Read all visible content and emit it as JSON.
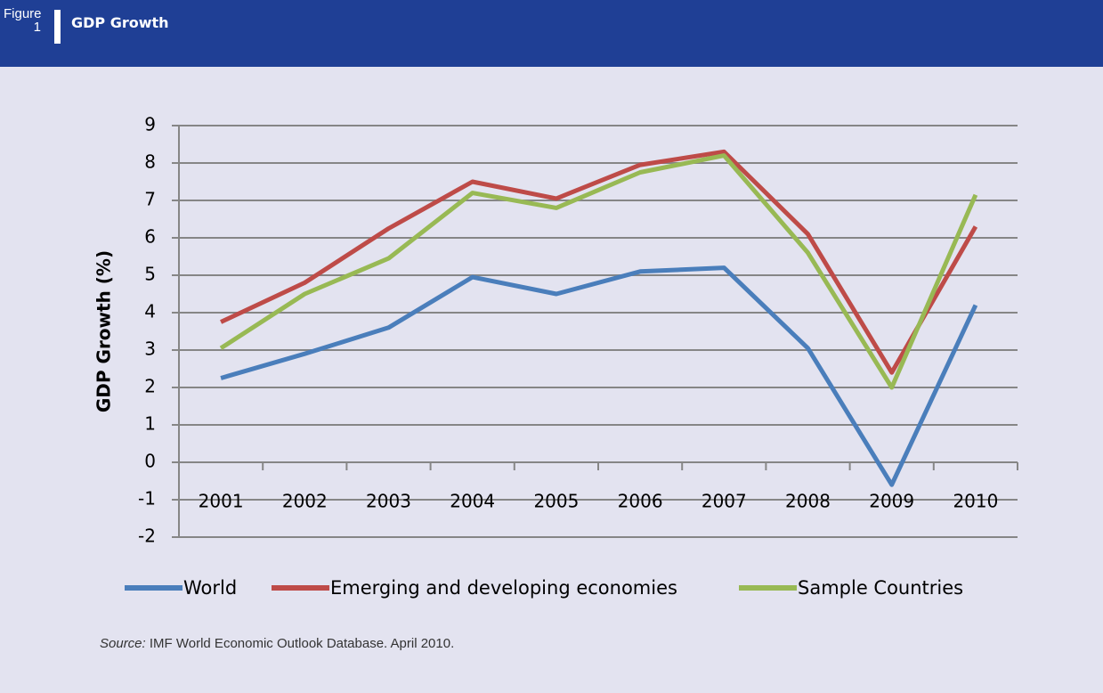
{
  "header": {
    "figure_label": "Figure",
    "figure_number": "1",
    "title": "GDP Growth"
  },
  "chart_data": {
    "type": "line",
    "y_label": "GDP Growth (%)",
    "categories": [
      "2001",
      "2002",
      "2003",
      "2004",
      "2005",
      "2006",
      "2007",
      "2008",
      "2009",
      "2010"
    ],
    "series": [
      {
        "name": "World",
        "color": "#4a7ebb",
        "values": [
          2.25,
          2.9,
          3.6,
          4.95,
          4.5,
          5.1,
          5.2,
          3.05,
          -0.6,
          4.2
        ]
      },
      {
        "name": "Emerging and developing economies",
        "color": "#be4b48",
        "values": [
          3.75,
          4.8,
          6.25,
          7.5,
          7.05,
          7.95,
          8.3,
          6.1,
          2.4,
          6.3
        ]
      },
      {
        "name": "Sample Countries",
        "color": "#98b954",
        "values": [
          3.05,
          4.5,
          5.45,
          7.2,
          6.8,
          7.75,
          8.2,
          5.6,
          2.0,
          7.15
        ]
      }
    ],
    "ylim": [
      -2,
      9
    ],
    "yticks": [
      -2,
      -1,
      0,
      1,
      2,
      3,
      4,
      5,
      6,
      7,
      8,
      9
    ],
    "grid": true,
    "legend": "bottom"
  },
  "source": {
    "label": "Source:",
    "text": "IMF World Economic Outlook Database. April 2010."
  }
}
